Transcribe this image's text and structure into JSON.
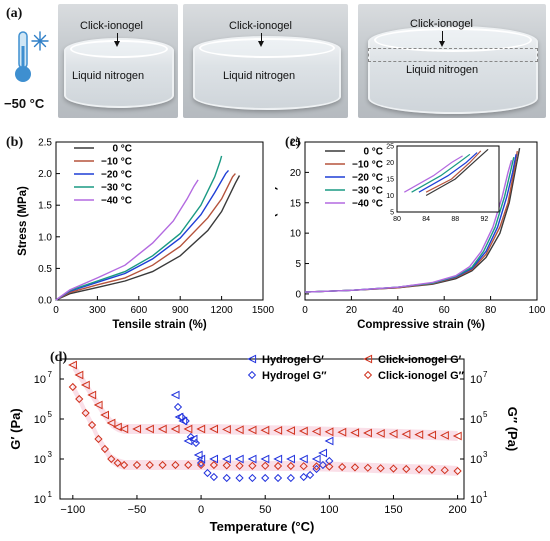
{
  "panel_a": {
    "label": "(a)",
    "temperature": "−50 °C",
    "photos": [
      {
        "top_label": "Click-ionogel",
        "bottom_label": "Liquid nitrogen"
      },
      {
        "top_label": "Click-ionogel",
        "bottom_label": "Liquid nitrogen"
      },
      {
        "top_label": "Click-ionogel",
        "bottom_label": "Liquid nitrogen"
      }
    ]
  },
  "colors": {
    "c0": "#3a3a3a",
    "c10": "#b5533c",
    "c20": "#1f3fd6",
    "c30": "#1a9a83",
    "c40": "#b36ae0",
    "hydrogel": "#2233dd",
    "ionogel": "#d0321d"
  },
  "chart_data": [
    {
      "panel": "(b)",
      "type": "line",
      "xlabel": "Tensile strain (%)",
      "ylabel": "Stress (MPa)",
      "xlim": [
        0,
        1500
      ],
      "ylim": [
        0,
        2.5
      ],
      "xticks": [
        "0",
        "300",
        "600",
        "900",
        "1200",
        "1500"
      ],
      "yticks": [
        "0.0",
        "0.5",
        "1.0",
        "1.5",
        "2.0",
        "2.5"
      ],
      "legend_position": "top-left",
      "series": [
        {
          "name": "0 °C",
          "color_key": "c0",
          "x": [
            0,
            100,
            300,
            500,
            700,
            900,
            1100,
            1200,
            1300,
            1330
          ],
          "y": [
            0,
            0.1,
            0.2,
            0.3,
            0.45,
            0.7,
            1.1,
            1.4,
            1.85,
            1.97
          ]
        },
        {
          "name": "−10 °C",
          "color_key": "c10",
          "x": [
            0,
            100,
            300,
            500,
            700,
            900,
            1100,
            1200,
            1280,
            1300
          ],
          "y": [
            0,
            0.12,
            0.24,
            0.35,
            0.55,
            0.85,
            1.3,
            1.6,
            1.95,
            2.0
          ]
        },
        {
          "name": "−20 °C",
          "color_key": "c20",
          "x": [
            0,
            100,
            300,
            500,
            700,
            900,
            1050,
            1150,
            1230,
            1250
          ],
          "y": [
            0,
            0.14,
            0.28,
            0.42,
            0.65,
            0.98,
            1.35,
            1.7,
            2.0,
            2.05
          ]
        },
        {
          "name": "−30 °C",
          "color_key": "c30",
          "x": [
            0,
            100,
            300,
            500,
            700,
            900,
            1050,
            1150,
            1190,
            1200
          ],
          "y": [
            0,
            0.15,
            0.3,
            0.45,
            0.7,
            1.05,
            1.5,
            1.95,
            2.2,
            2.28
          ]
        },
        {
          "name": "−40 °C",
          "color_key": "c40",
          "x": [
            0,
            100,
            300,
            500,
            700,
            850,
            950,
            1000,
            1030
          ],
          "y": [
            0,
            0.16,
            0.35,
            0.55,
            0.9,
            1.25,
            1.6,
            1.8,
            1.9
          ]
        }
      ]
    },
    {
      "panel": "(c)",
      "type": "line",
      "xlabel": "Compressive strain (%)",
      "ylabel": "Stress (MPa)",
      "xlim": [
        0,
        100
      ],
      "ylim": [
        -1,
        25
      ],
      "xticks": [
        "0",
        "20",
        "40",
        "60",
        "80",
        "100"
      ],
      "yticks": [
        "0",
        "5",
        "10",
        "15",
        "20",
        "25"
      ],
      "legend_position": "top-left",
      "series": [
        {
          "name": "0 °C",
          "color_key": "c0",
          "x": [
            0,
            20,
            40,
            55,
            65,
            72,
            78,
            84,
            88,
            91,
            92.5
          ],
          "y": [
            0.3,
            0.6,
            1.0,
            1.6,
            2.5,
            3.8,
            6,
            10,
            15,
            21,
            24
          ]
        },
        {
          "name": "−10 °C",
          "color_key": "c10",
          "x": [
            0,
            20,
            40,
            55,
            65,
            72,
            78,
            84,
            87.5,
            90,
            91.5
          ],
          "y": [
            0.3,
            0.6,
            1.0,
            1.7,
            2.7,
            4,
            6.5,
            11,
            15,
            20,
            23.5
          ]
        },
        {
          "name": "−20 °C",
          "color_key": "c20",
          "x": [
            0,
            20,
            40,
            55,
            65,
            72,
            78,
            83,
            87,
            89.5,
            91
          ],
          "y": [
            0.3,
            0.6,
            1.1,
            1.8,
            2.8,
            4.2,
            7,
            11,
            16,
            20,
            23
          ]
        },
        {
          "name": "−30 °C",
          "color_key": "c30",
          "x": [
            0,
            20,
            40,
            55,
            65,
            72,
            77,
            82,
            86,
            88.5,
            90
          ],
          "y": [
            0.3,
            0.6,
            1.1,
            1.8,
            2.9,
            4.4,
            7,
            11,
            16,
            20,
            22.5
          ]
        },
        {
          "name": "−40 °C",
          "color_key": "c40",
          "x": [
            0,
            20,
            40,
            55,
            65,
            71,
            76,
            81,
            85,
            87.5,
            89
          ],
          "y": [
            0.3,
            0.6,
            1.1,
            1.9,
            3.0,
            4.5,
            7,
            11,
            16,
            20,
            22
          ]
        }
      ],
      "inset": {
        "xlim": [
          80,
          94
        ],
        "ylim": [
          5,
          25
        ],
        "xticks": [
          "80",
          "84",
          "88",
          "92"
        ],
        "yticks": [
          "5",
          "10",
          "15",
          "20",
          "25"
        ]
      }
    },
    {
      "panel": "(d)",
      "type": "scatter",
      "xlabel": "Temperature (°C)",
      "ylabel_left": "G′ (Pa)",
      "ylabel_right": "G″ (Pa)",
      "xlim": [
        -110,
        205
      ],
      "ylog": true,
      "ylim_exp": [
        1,
        8
      ],
      "xticks": [
        "−100",
        "−50",
        "0",
        "50",
        "100",
        "150",
        "200"
      ],
      "yticks": [
        {
          "b": "10",
          "e": "1"
        },
        {
          "b": "10",
          "e": "3"
        },
        {
          "b": "10",
          "e": "5"
        },
        {
          "b": "10",
          "e": "7"
        }
      ],
      "legend": [
        "Hydrogel G′",
        "Click-ionogel G′",
        "Hydrogel G″",
        "Click-ionogel G″"
      ],
      "series": [
        {
          "name": "Hydrogel G′",
          "color_key": "hydrogel",
          "marker": "triangle-left",
          "x": [
            -20,
            -17,
            -14,
            -10,
            -6,
            -2,
            0,
            10,
            20,
            30,
            40,
            50,
            60,
            70,
            80,
            90,
            95,
            100
          ],
          "logy": [
            6.2,
            5.1,
            4.9,
            3.9,
            4.0,
            3.2,
            3.0,
            3.0,
            3.0,
            3.0,
            3.0,
            3.0,
            3.0,
            3.0,
            3.0,
            3.0,
            3.3,
            3.9
          ]
        },
        {
          "name": "Click-ionogel G′",
          "color_key": "ionogel",
          "marker": "triangle-left",
          "x": [
            -100,
            -95,
            -90,
            -85,
            -80,
            -75,
            -70,
            -65,
            -60,
            -50,
            -40,
            -30,
            -20,
            -10,
            0,
            10,
            20,
            30,
            40,
            50,
            60,
            70,
            80,
            90,
            100,
            110,
            120,
            130,
            140,
            150,
            160,
            170,
            180,
            190,
            200
          ],
          "logy": [
            7.7,
            7.2,
            6.7,
            6.2,
            5.7,
            5.2,
            4.8,
            4.6,
            4.5,
            4.5,
            4.5,
            4.5,
            4.5,
            4.5,
            4.5,
            4.5,
            4.48,
            4.46,
            4.45,
            4.44,
            4.43,
            4.42,
            4.4,
            4.38,
            4.36,
            4.34,
            4.32,
            4.3,
            4.28,
            4.26,
            4.24,
            4.22,
            4.2,
            4.18,
            4.15
          ]
        },
        {
          "name": "Hydrogel G″",
          "color_key": "hydrogel",
          "marker": "diamond",
          "x": [
            -18,
            -15,
            -12,
            -8,
            -4,
            0,
            5,
            10,
            20,
            30,
            40,
            50,
            60,
            70,
            80,
            85,
            90,
            95,
            100
          ],
          "logy": [
            5.6,
            5.1,
            4.9,
            4.1,
            3.8,
            2.8,
            2.3,
            2.1,
            2.05,
            2.05,
            2.05,
            2.05,
            2.05,
            2.05,
            2.1,
            2.2,
            2.5,
            2.7,
            2.9
          ]
        },
        {
          "name": "Click-ionogel G″",
          "color_key": "ionogel",
          "marker": "diamond",
          "x": [
            -100,
            -95,
            -90,
            -85,
            -80,
            -75,
            -70,
            -65,
            -60,
            -50,
            -40,
            -30,
            -20,
            -10,
            0,
            10,
            20,
            30,
            40,
            50,
            60,
            70,
            80,
            90,
            100,
            110,
            120,
            130,
            140,
            150,
            160,
            170,
            180,
            190,
            200
          ],
          "logy": [
            6.6,
            6.0,
            5.3,
            4.7,
            4.0,
            3.5,
            3.0,
            2.8,
            2.7,
            2.7,
            2.7,
            2.7,
            2.7,
            2.7,
            2.7,
            2.7,
            2.68,
            2.66,
            2.66,
            2.66,
            2.65,
            2.65,
            2.64,
            2.63,
            2.62,
            2.6,
            2.58,
            2.56,
            2.54,
            2.52,
            2.5,
            2.48,
            2.46,
            2.44,
            2.4
          ]
        }
      ]
    }
  ]
}
